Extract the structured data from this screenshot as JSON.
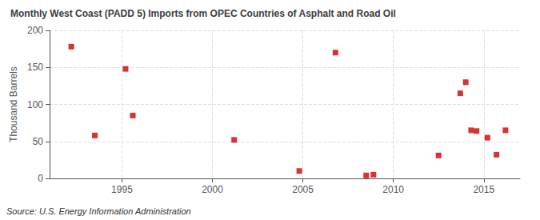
{
  "chart_data": {
    "type": "scatter",
    "title": "Monthly West Coast (PADD 5) Imports from OPEC Countries of Asphalt and Road Oil",
    "ylabel": "Thousand Barrels",
    "annotations": [
      "Source: U.S. Energy Information Administration"
    ],
    "x": [
      1992.2,
      1993.5,
      1995.2,
      1995.6,
      2001.2,
      2004.8,
      2006.8,
      2008.5,
      2008.9,
      2012.5,
      2013.7,
      2014.0,
      2014.3,
      2014.6,
      2015.2,
      2015.7,
      2016.2
    ],
    "values": [
      178,
      58,
      148,
      85,
      52,
      10,
      170,
      4,
      5,
      31,
      115,
      130,
      65,
      64,
      55,
      32,
      65
    ],
    "color": "#cc0000",
    "marker": "square",
    "xlim": [
      1991,
      2017
    ],
    "xticks": [
      1995,
      2000,
      2005,
      2010,
      2015
    ],
    "ylim": [
      0,
      200
    ],
    "yticks": [
      0,
      50,
      100,
      150,
      200
    ],
    "grid": true
  }
}
